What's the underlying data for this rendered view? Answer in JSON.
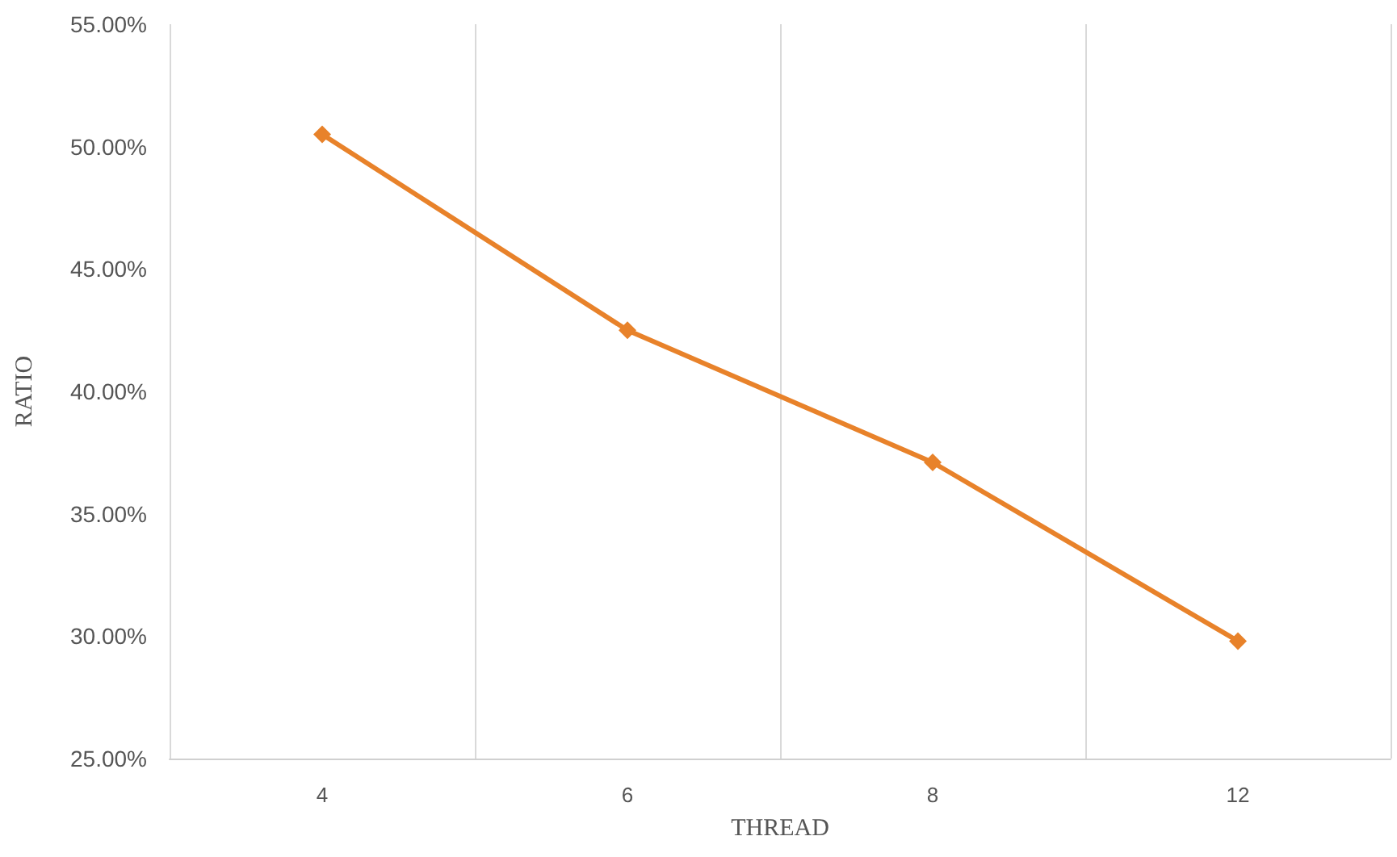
{
  "chart_data": {
    "type": "line",
    "xlabel": "THREAD",
    "ylabel": "RATIO",
    "categories": [
      "4",
      "6",
      "8",
      "12"
    ],
    "series": [
      {
        "color": "#e8822a",
        "values": [
          50.5,
          42.5,
          37.1,
          29.8
        ]
      }
    ],
    "ylim": [
      25,
      55
    ],
    "yticks": [
      {
        "value": 25,
        "label": "25.00%"
      },
      {
        "value": 30,
        "label": "30.00%"
      },
      {
        "value": 35,
        "label": "35.00%"
      },
      {
        "value": 40,
        "label": "40.00%"
      },
      {
        "value": 45,
        "label": "45.00%"
      },
      {
        "value": 50,
        "label": "50.00%"
      },
      {
        "value": 55,
        "label": "55.00%"
      }
    ],
    "grid": "x",
    "marker": "diamond",
    "line_style": "solid"
  }
}
